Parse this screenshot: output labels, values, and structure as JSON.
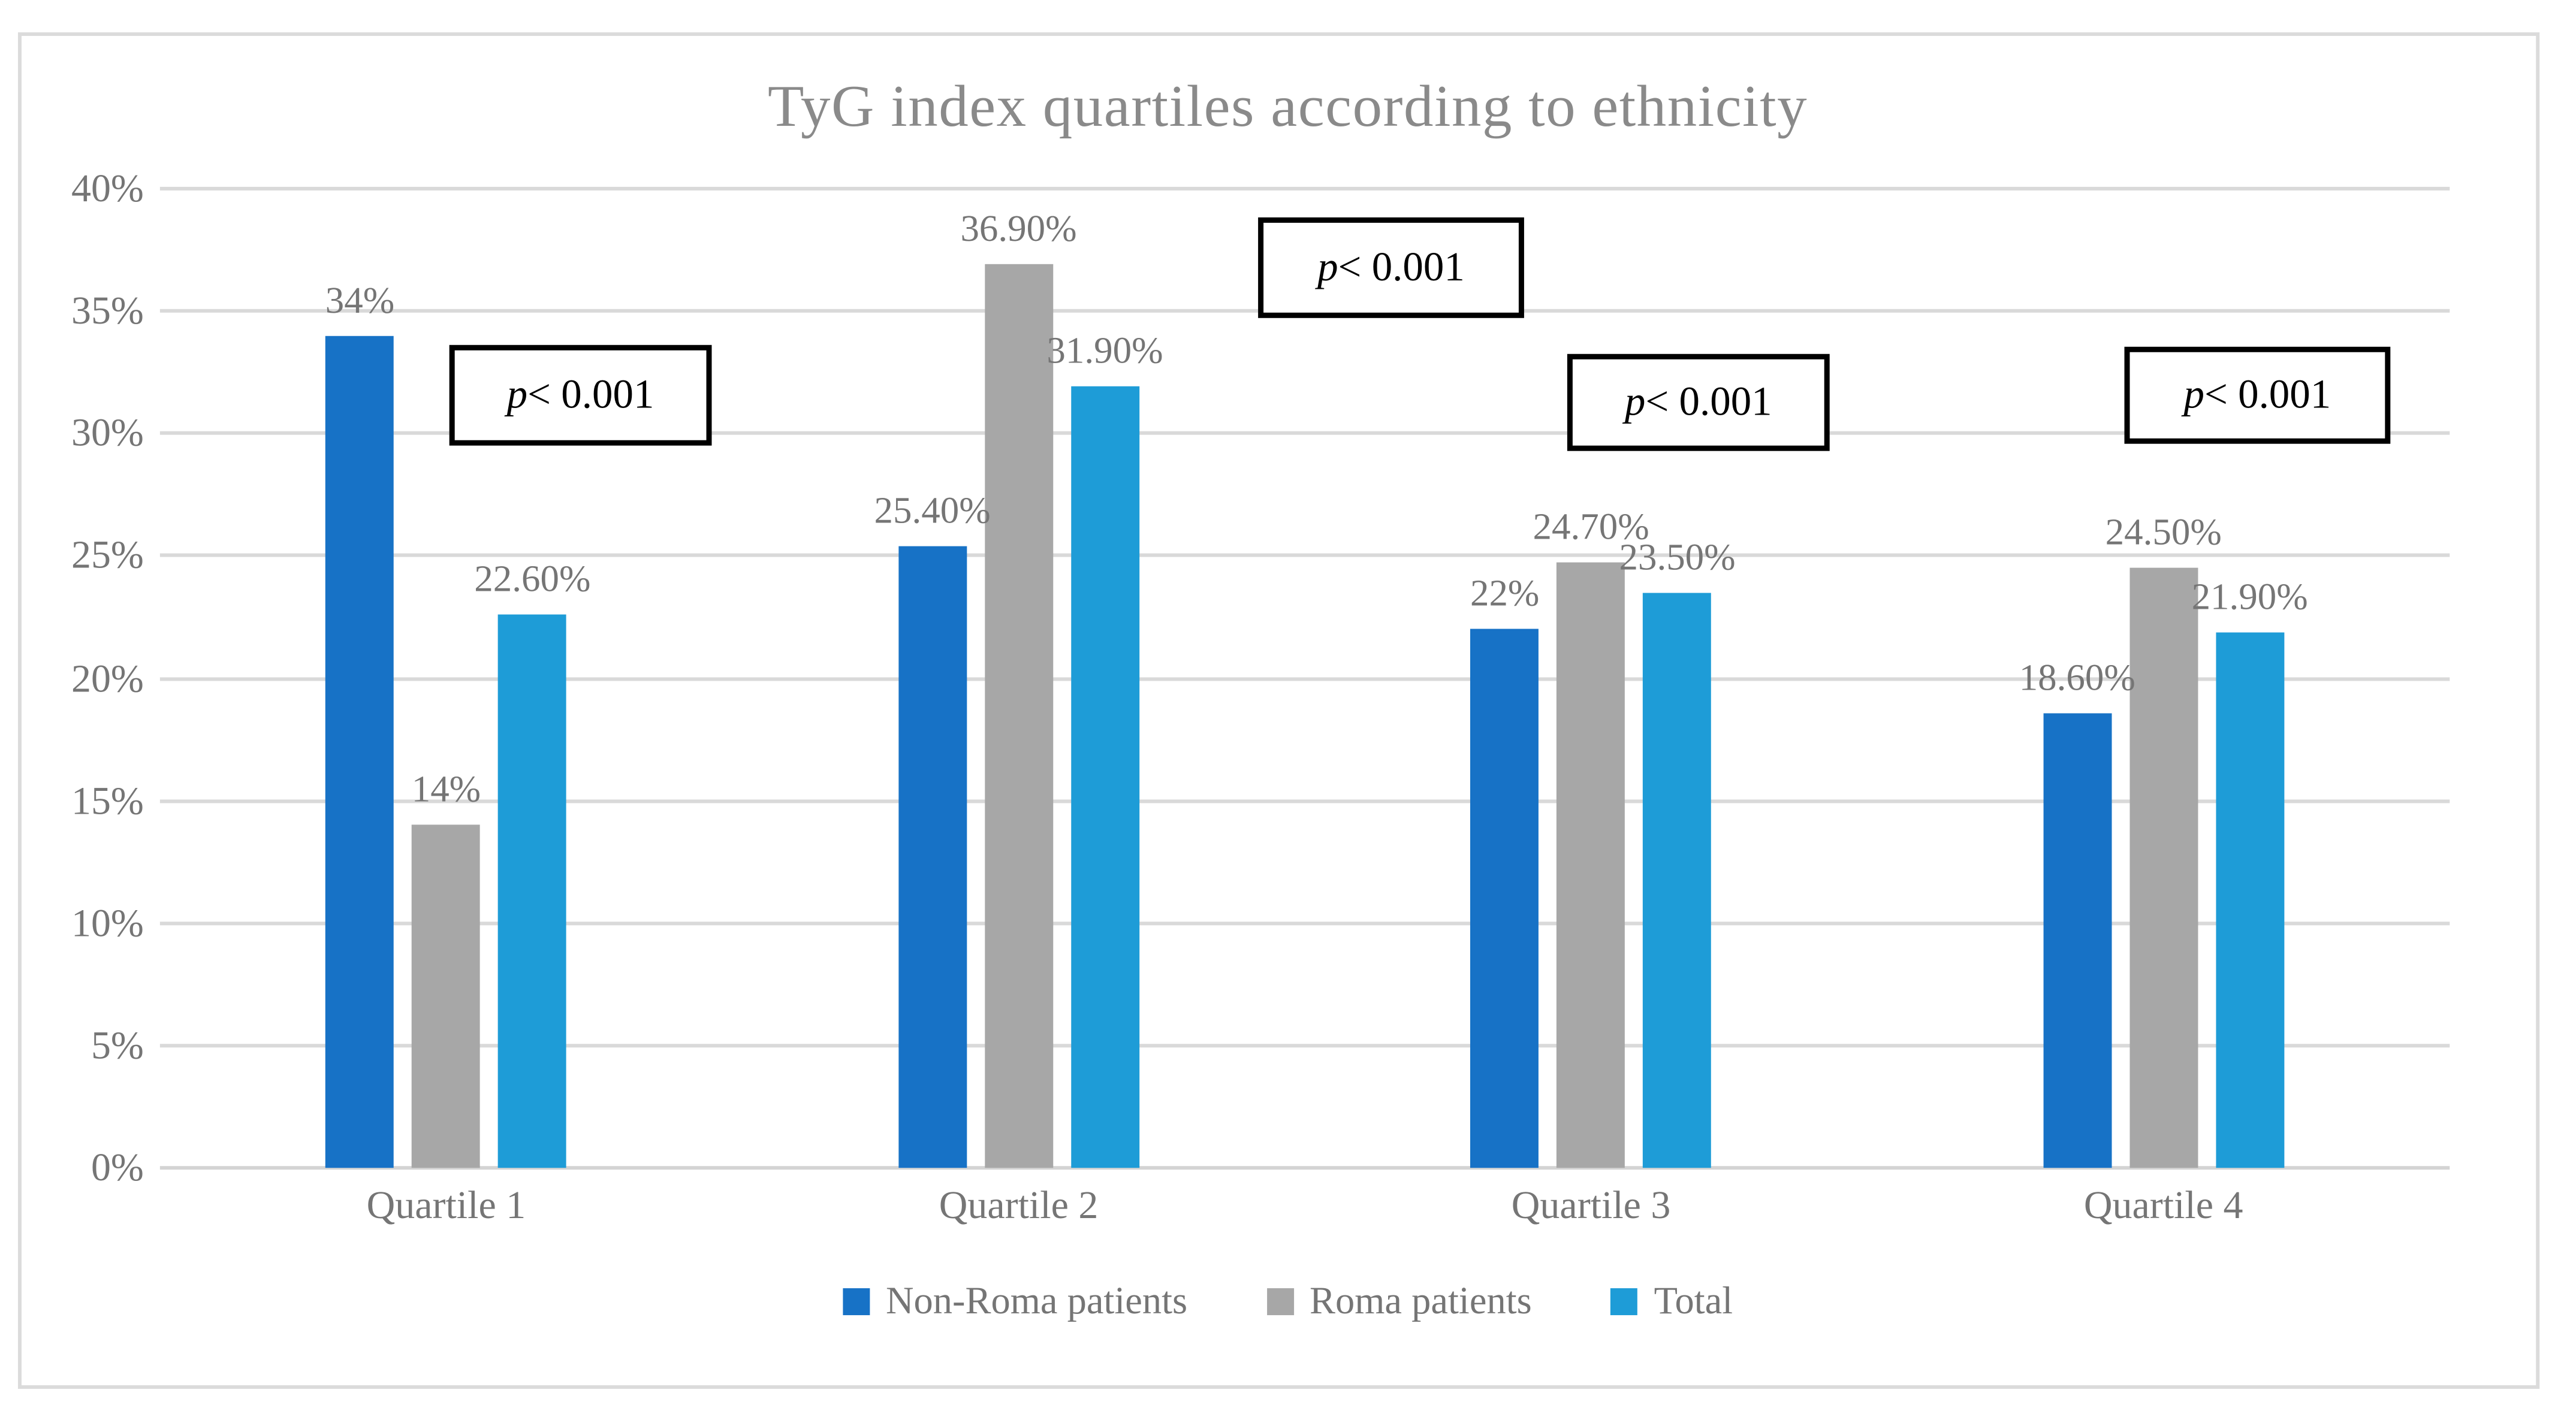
{
  "chart_data": {
    "type": "bar",
    "title": "TyG index quartiles according to ethnicity",
    "categories": [
      "Quartile 1",
      "Quartile 2",
      "Quartile 3",
      "Quartile 4"
    ],
    "series": [
      {
        "name": "Non-Roma patients",
        "color": "#1772C6",
        "values": [
          34,
          25.4,
          22,
          18.6
        ],
        "value_labels": [
          "34%",
          "25.40%",
          "22%",
          "18.60%"
        ]
      },
      {
        "name": "Roma patients",
        "color": "#A7A7A7",
        "values": [
          14,
          36.9,
          24.7,
          24.5
        ],
        "value_labels": [
          "14%",
          "36.90%",
          "24.70%",
          "24.50%"
        ]
      },
      {
        "name": "Total",
        "color": "#1E9CD7",
        "values": [
          22.6,
          31.9,
          23.5,
          21.9
        ],
        "value_labels": [
          "22.60%",
          "31.90%",
          "23.50%",
          "21.90%"
        ]
      }
    ],
    "ylim": [
      0,
      40
    ],
    "ytick_step": 5,
    "ytick_labels": [
      "0%",
      "5%",
      "10%",
      "15%",
      "20%",
      "25%",
      "30%",
      "35%",
      "40%"
    ],
    "grid": true,
    "legend_position": "bottom",
    "annotations": [
      {
        "italic_prefix": "p",
        "rest": " < 0.001",
        "text": "p < 0.001",
        "anchor": {
          "x": 250,
          "y": 192,
          "w": 140,
          "h": 50
        }
      },
      {
        "italic_prefix": "p",
        "rest": " < 0.001",
        "text": "p < 0.001",
        "anchor": {
          "x": 700,
          "y": 121,
          "w": 142,
          "h": 50
        }
      },
      {
        "italic_prefix": "p",
        "rest": " < 0.001",
        "text": "p < 0.001",
        "anchor": {
          "x": 872,
          "y": 197,
          "w": 140,
          "h": 48
        }
      },
      {
        "italic_prefix": "p",
        "rest": " < 0.001",
        "text": "p < 0.001",
        "anchor": {
          "x": 1182,
          "y": 193,
          "w": 142,
          "h": 48
        }
      }
    ],
    "colors": {
      "gridline": "#D9D9D9",
      "axis_line": "#D4D4D4",
      "tick_label": "#757575",
      "title": "#8A8A8A",
      "annotation_border": "#000000",
      "figure_border": "#DBDBDB"
    }
  }
}
